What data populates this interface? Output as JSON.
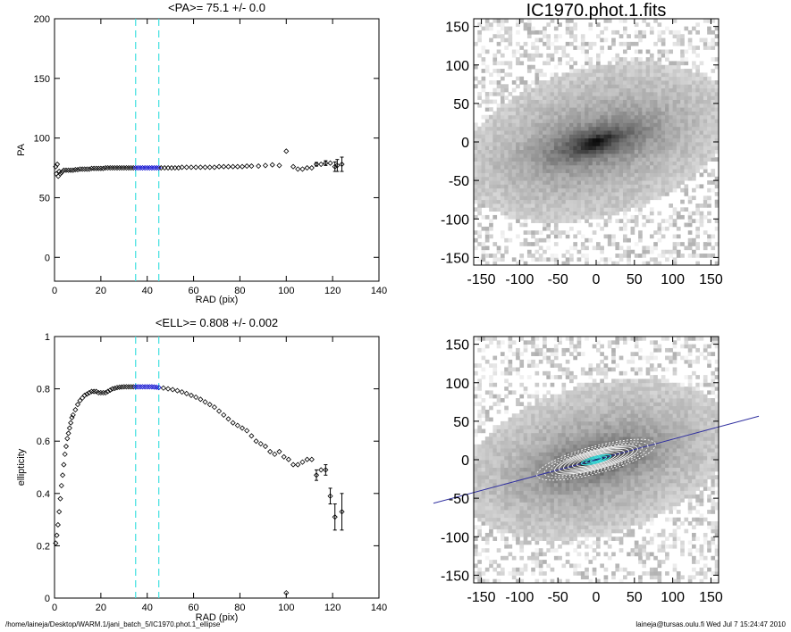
{
  "chart_data": [
    {
      "type": "scatter",
      "title": "<PA>=  75.1 +/-   0.0",
      "xlabel": "RAD (pix)",
      "ylabel": "PA",
      "xlim": [
        0,
        140
      ],
      "ylim": [
        -20,
        200
      ],
      "xticks": [
        0,
        20,
        40,
        60,
        80,
        100,
        120,
        140
      ],
      "yticks": [
        0,
        50,
        100,
        150,
        200
      ],
      "vlines": [
        35,
        45
      ],
      "vline_color": "#40e0e0",
      "highlight_color": "#0000cc",
      "highlight_range": [
        35,
        45
      ],
      "points": [
        [
          0.5,
          76
        ],
        [
          0.8,
          70
        ],
        [
          1.2,
          78
        ],
        [
          1.6,
          68
        ],
        [
          2,
          72
        ],
        [
          2.5,
          70
        ],
        [
          3,
          71
        ],
        [
          3.5,
          72
        ],
        [
          4,
          73
        ],
        [
          5,
          73
        ],
        [
          6,
          73
        ],
        [
          7,
          73
        ],
        [
          8,
          73
        ],
        [
          9,
          73.5
        ],
        [
          10,
          73.5
        ],
        [
          11,
          74
        ],
        [
          12,
          74
        ],
        [
          13,
          74
        ],
        [
          14,
          74
        ],
        [
          15,
          74
        ],
        [
          16,
          74.5
        ],
        [
          17,
          74.5
        ],
        [
          18,
          74.5
        ],
        [
          19,
          74.5
        ],
        [
          20,
          74.5
        ],
        [
          21,
          74.5
        ],
        [
          22,
          75
        ],
        [
          23,
          75
        ],
        [
          24,
          75
        ],
        [
          25,
          75
        ],
        [
          26,
          75
        ],
        [
          27,
          75
        ],
        [
          28,
          75
        ],
        [
          29,
          75
        ],
        [
          30,
          75
        ],
        [
          31,
          75
        ],
        [
          32,
          75
        ],
        [
          33,
          75
        ],
        [
          34,
          75
        ],
        [
          35,
          75
        ],
        [
          36,
          75
        ],
        [
          37,
          75
        ],
        [
          38,
          75
        ],
        [
          39,
          75
        ],
        [
          40,
          75
        ],
        [
          41,
          75
        ],
        [
          42,
          75
        ],
        [
          43,
          75
        ],
        [
          44,
          75
        ],
        [
          45,
          75
        ],
        [
          46,
          75
        ],
        [
          47.5,
          75
        ],
        [
          49,
          75
        ],
        [
          50.5,
          75
        ],
        [
          52,
          75
        ],
        [
          53.5,
          75
        ],
        [
          55,
          75.5
        ],
        [
          57,
          75.5
        ],
        [
          59,
          75.5
        ],
        [
          61,
          75.5
        ],
        [
          63,
          75.5
        ],
        [
          65,
          75.5
        ],
        [
          67,
          75.5
        ],
        [
          69,
          75.5
        ],
        [
          71,
          76
        ],
        [
          73,
          76
        ],
        [
          75,
          76
        ],
        [
          77,
          76
        ],
        [
          79,
          76
        ],
        [
          81,
          76
        ],
        [
          83,
          76.5
        ],
        [
          85,
          76.5
        ],
        [
          88,
          76.5
        ],
        [
          91,
          77
        ],
        [
          94,
          77.5
        ],
        [
          97,
          77
        ],
        [
          100,
          89
        ],
        [
          103,
          76
        ],
        [
          105,
          74
        ],
        [
          107,
          74
        ],
        [
          109,
          75
        ],
        [
          111,
          75
        ],
        [
          113,
          78
        ],
        [
          115,
          78
        ],
        [
          117,
          79
        ],
        [
          119,
          79
        ],
        [
          121,
          76
        ],
        [
          122,
          77
        ],
        [
          124,
          78
        ]
      ],
      "error_bars": [
        [
          113,
          78,
          1.5
        ],
        [
          117,
          79,
          2
        ],
        [
          121,
          76,
          4
        ],
        [
          122,
          77,
          5
        ],
        [
          124,
          78,
          6
        ]
      ]
    },
    {
      "type": "scatter",
      "title": "<ELL>= 0.808 +/-  0.002",
      "xlabel": "RAD (pix)",
      "ylabel": "ellipticity",
      "xlim": [
        0,
        140
      ],
      "ylim": [
        0,
        1
      ],
      "xticks": [
        0,
        20,
        40,
        60,
        80,
        100,
        120,
        140
      ],
      "yticks": [
        0.0,
        0.2,
        0.4,
        0.6,
        0.8,
        1.0
      ],
      "vlines": [
        35,
        45
      ],
      "vline_color": "#40e0e0",
      "highlight_color": "#0000cc",
      "highlight_range": [
        35,
        45
      ],
      "points": [
        [
          0.5,
          0.21
        ],
        [
          1,
          0.24
        ],
        [
          1.5,
          0.28
        ],
        [
          2,
          0.33
        ],
        [
          2.5,
          0.38
        ],
        [
          3,
          0.43
        ],
        [
          3.5,
          0.47
        ],
        [
          4,
          0.51
        ],
        [
          4.5,
          0.55
        ],
        [
          5,
          0.58
        ],
        [
          5.5,
          0.61
        ],
        [
          6,
          0.63
        ],
        [
          6.5,
          0.65
        ],
        [
          7,
          0.67
        ],
        [
          7.5,
          0.69
        ],
        [
          8,
          0.7
        ],
        [
          9,
          0.72
        ],
        [
          10,
          0.74
        ],
        [
          11,
          0.755
        ],
        [
          12,
          0.765
        ],
        [
          13,
          0.775
        ],
        [
          14,
          0.78
        ],
        [
          15,
          0.785
        ],
        [
          16,
          0.79
        ],
        [
          17,
          0.79
        ],
        [
          18,
          0.79
        ],
        [
          19,
          0.785
        ],
        [
          20,
          0.785
        ],
        [
          21,
          0.785
        ],
        [
          22,
          0.785
        ],
        [
          23,
          0.79
        ],
        [
          24,
          0.795
        ],
        [
          25,
          0.8
        ],
        [
          26,
          0.802
        ],
        [
          27,
          0.805
        ],
        [
          28,
          0.806
        ],
        [
          29,
          0.807
        ],
        [
          30,
          0.808
        ],
        [
          31,
          0.808
        ],
        [
          32,
          0.808
        ],
        [
          33,
          0.808
        ],
        [
          34,
          0.808
        ],
        [
          35,
          0.808
        ],
        [
          36,
          0.808
        ],
        [
          37,
          0.808
        ],
        [
          38,
          0.808
        ],
        [
          39,
          0.808
        ],
        [
          40,
          0.808
        ],
        [
          41,
          0.808
        ],
        [
          42,
          0.808
        ],
        [
          43,
          0.807
        ],
        [
          44,
          0.806
        ],
        [
          45,
          0.805
        ],
        [
          47,
          0.803
        ],
        [
          49,
          0.8
        ],
        [
          51,
          0.797
        ],
        [
          53,
          0.793
        ],
        [
          55,
          0.788
        ],
        [
          57,
          0.782
        ],
        [
          59,
          0.775
        ],
        [
          61,
          0.768
        ],
        [
          63,
          0.76
        ],
        [
          65,
          0.75
        ],
        [
          67,
          0.74
        ],
        [
          69,
          0.73
        ],
        [
          71,
          0.715
        ],
        [
          73,
          0.7
        ],
        [
          75,
          0.685
        ],
        [
          77,
          0.67
        ],
        [
          79,
          0.66
        ],
        [
          81,
          0.65
        ],
        [
          83,
          0.64
        ],
        [
          85,
          0.62
        ],
        [
          87,
          0.6
        ],
        [
          89,
          0.59
        ],
        [
          91,
          0.58
        ],
        [
          93,
          0.56
        ],
        [
          95,
          0.55
        ],
        [
          97,
          0.56
        ],
        [
          99,
          0.54
        ],
        [
          101,
          0.53
        ],
        [
          103,
          0.51
        ],
        [
          105,
          0.51
        ],
        [
          107,
          0.52
        ],
        [
          109,
          0.53
        ],
        [
          111,
          0.53
        ],
        [
          113,
          0.47
        ],
        [
          115,
          0.49
        ],
        [
          117,
          0.49
        ],
        [
          119,
          0.39
        ],
        [
          121,
          0.31
        ],
        [
          124,
          0.33
        ],
        [
          100,
          0.02
        ]
      ],
      "error_bars": [
        [
          113,
          0.47,
          0.02
        ],
        [
          117,
          0.49,
          0.02
        ],
        [
          119,
          0.39,
          0.03
        ],
        [
          121,
          0.31,
          0.05
        ],
        [
          124,
          0.33,
          0.07
        ]
      ]
    },
    {
      "type": "heatmap",
      "title": "IC1970.phot.1.fits",
      "xlim": [
        -160,
        160
      ],
      "ylim": [
        -160,
        160
      ],
      "xticks": [
        -150,
        -100,
        -50,
        0,
        50,
        100,
        150
      ],
      "yticks": [
        -150,
        -100,
        -50,
        0,
        50,
        100,
        150
      ],
      "galaxy": {
        "center": [
          0,
          0
        ],
        "position_angle_deg": 75.1,
        "ellipticity": 0.808,
        "semi_major": 95
      }
    },
    {
      "type": "heatmap",
      "title": "",
      "xlim": [
        -160,
        160
      ],
      "ylim": [
        -160,
        160
      ],
      "xticks": [
        -150,
        -100,
        -50,
        0,
        50,
        100,
        150
      ],
      "yticks": [
        -150,
        -100,
        -50,
        0,
        50,
        100,
        150
      ],
      "galaxy": {
        "center": [
          0,
          0
        ],
        "position_angle_deg": 75.1,
        "ellipticity": 0.808,
        "semi_major": 95
      },
      "contour_semi_majors": [
        8,
        14,
        20,
        26,
        32,
        38,
        44,
        50,
        56,
        62,
        70,
        80
      ],
      "line_color": "#3030a0",
      "contour_color": "#ffffff",
      "fit_color": "#40e0e0"
    }
  ],
  "footer": {
    "left": "/home/laineja/Desktop/WARM.1/jani_batch_5/IC1970.phot.1_ellipse",
    "right": "laineja@tursas.oulu.fi  Wed Jul  7 15:24:47 2010"
  }
}
